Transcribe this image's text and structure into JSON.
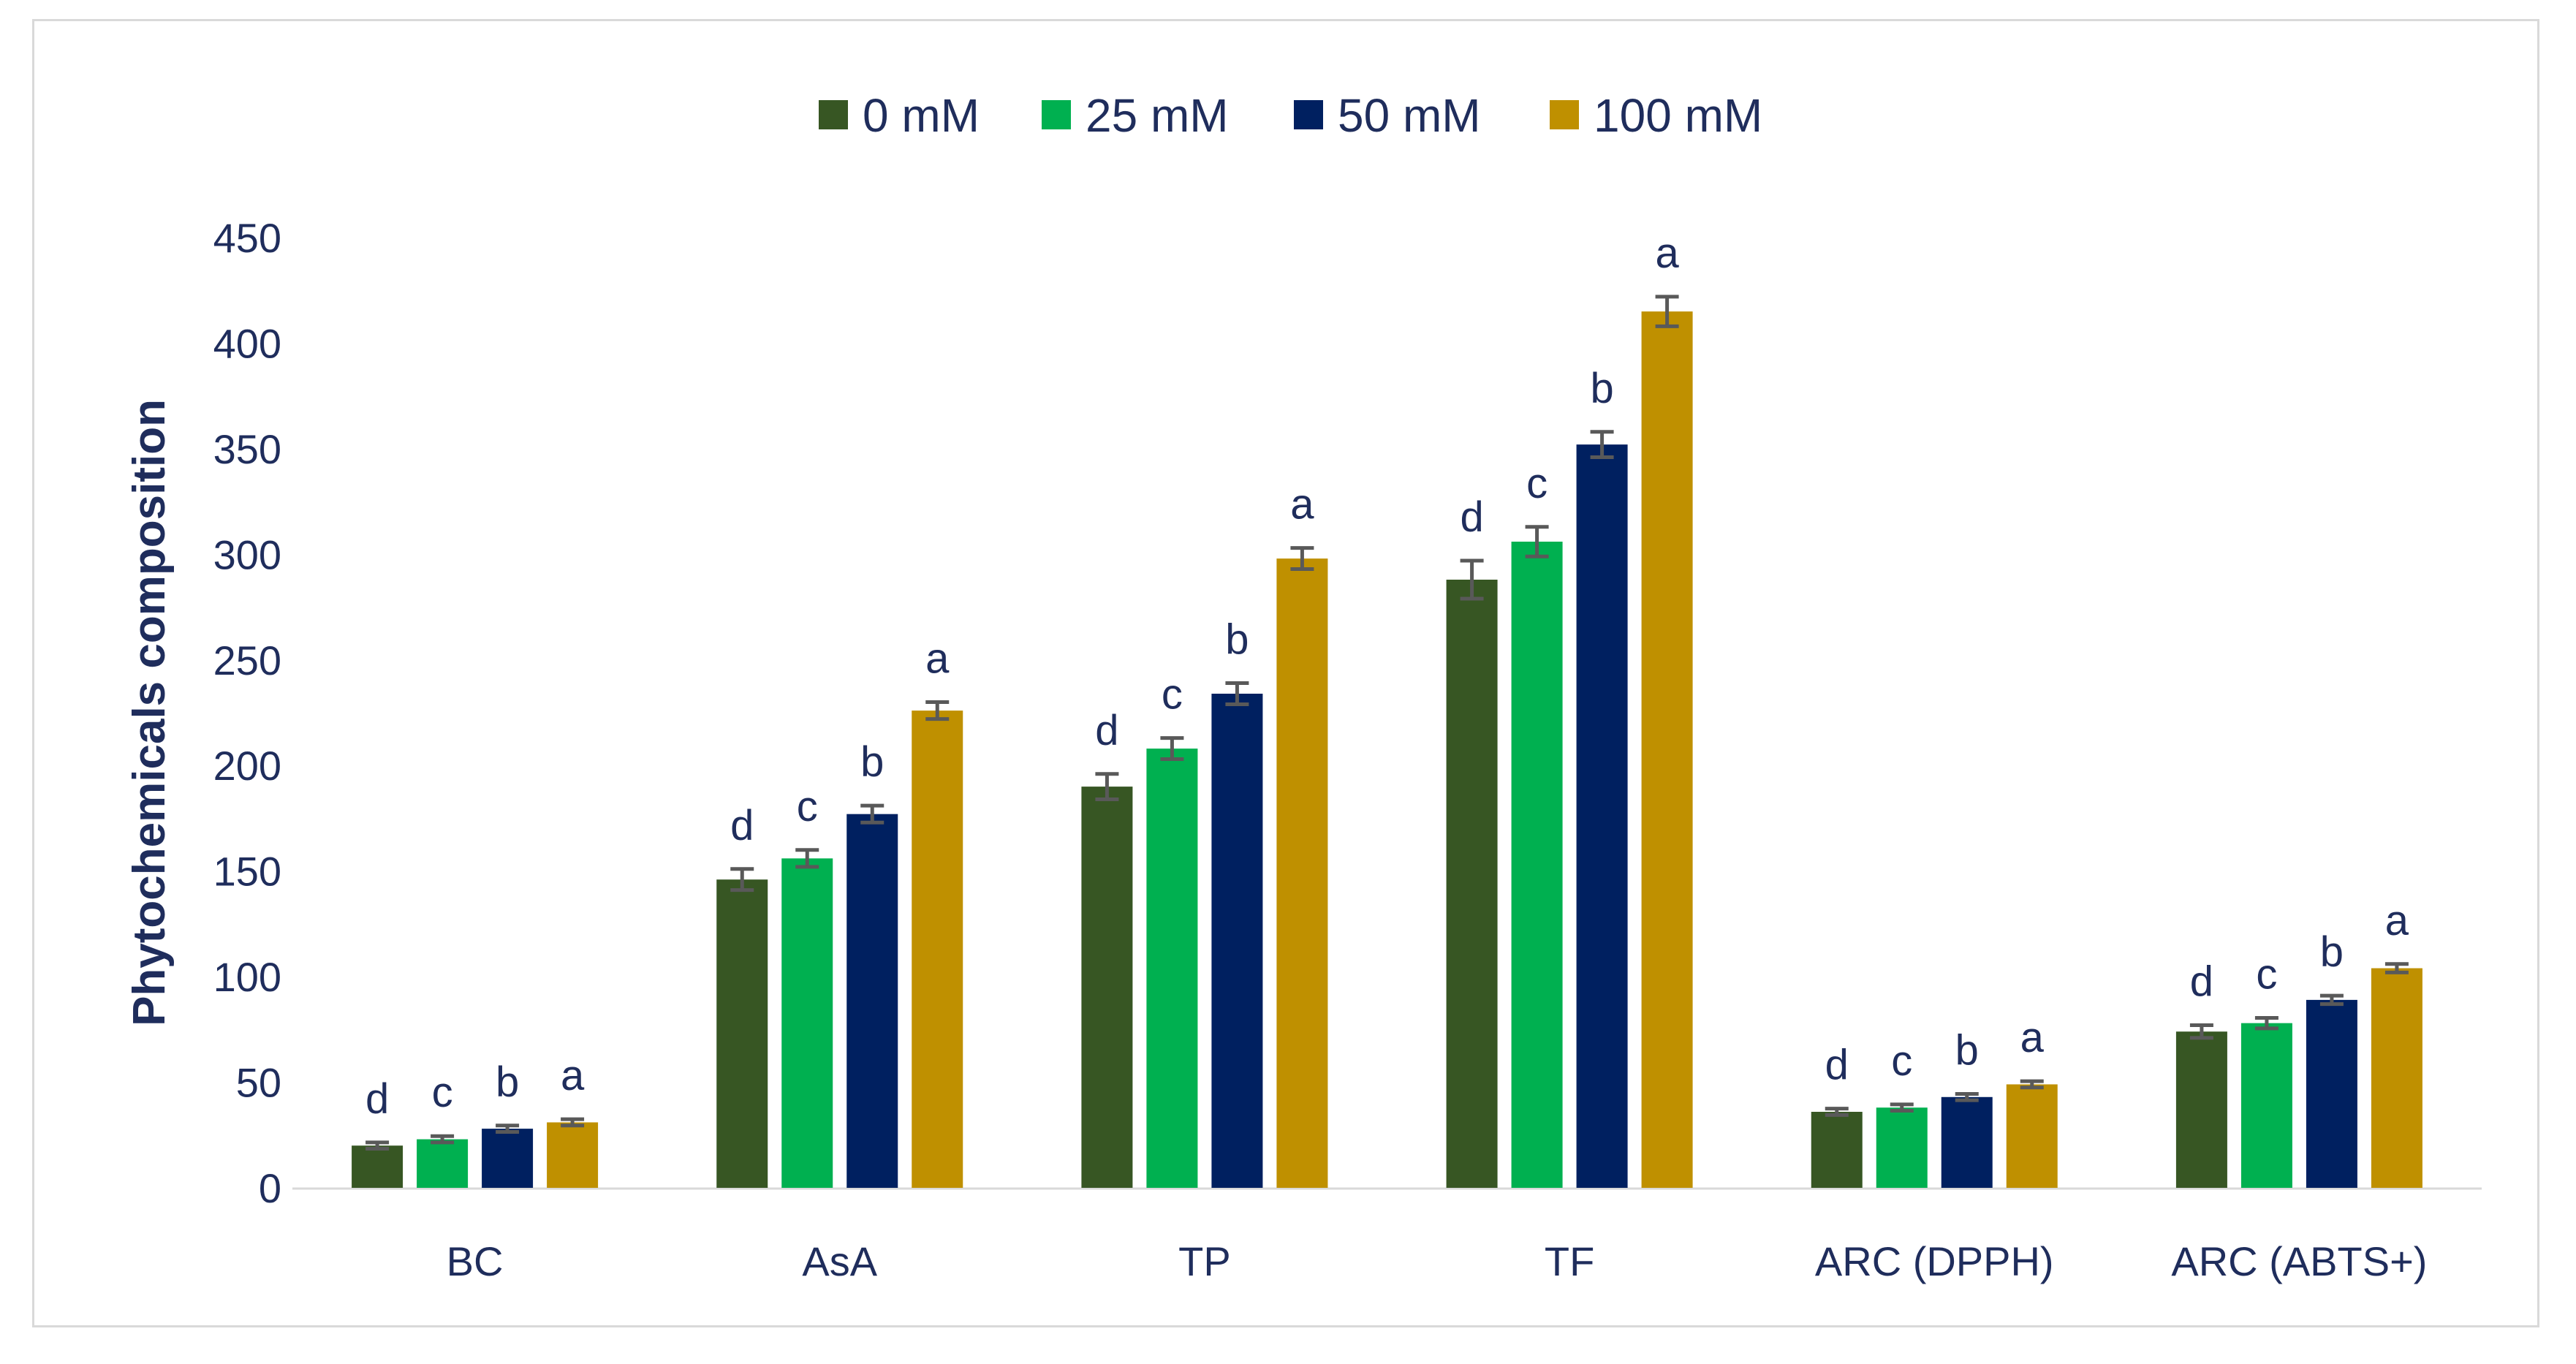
{
  "chart_data": {
    "type": "bar",
    "title": "",
    "xlabel": "",
    "ylabel": "Phytochemicals composition",
    "ylim": [
      0,
      450
    ],
    "yticks": [
      0,
      50,
      100,
      150,
      200,
      250,
      300,
      350,
      400,
      450
    ],
    "grid": false,
    "legend_position": "top-center",
    "categories": [
      "BC",
      "AsA",
      "TP",
      "TF",
      "ARC (DPPH)",
      "ARC (ABTS+)"
    ],
    "series": [
      {
        "name": "0 mM",
        "color": "#375623",
        "values": [
          20,
          146,
          190,
          288,
          36,
          74
        ],
        "errors": [
          1.5,
          5,
          6,
          9,
          1.5,
          3
        ],
        "letters": [
          "d",
          "d",
          "d",
          "d",
          "d",
          "d"
        ]
      },
      {
        "name": "25 mM",
        "color": "#00b050",
        "values": [
          23,
          156,
          208,
          306,
          38,
          78
        ],
        "errors": [
          1.5,
          4,
          5,
          7,
          1.5,
          2.5
        ],
        "letters": [
          "c",
          "c",
          "c",
          "c",
          "c",
          "c"
        ]
      },
      {
        "name": "50 mM",
        "color": "#002060",
        "values": [
          28,
          177,
          234,
          352,
          43,
          89
        ],
        "errors": [
          1.5,
          4,
          5,
          6,
          1.5,
          2
        ],
        "letters": [
          "b",
          "b",
          "b",
          "b",
          "b",
          "b"
        ]
      },
      {
        "name": "100 mM",
        "color": "#bf9000",
        "values": [
          31,
          226,
          298,
          415,
          49,
          104
        ],
        "errors": [
          1.5,
          4,
          5,
          7,
          1.5,
          2
        ],
        "letters": [
          "a",
          "a",
          "a",
          "a",
          "a",
          "a"
        ]
      }
    ]
  }
}
